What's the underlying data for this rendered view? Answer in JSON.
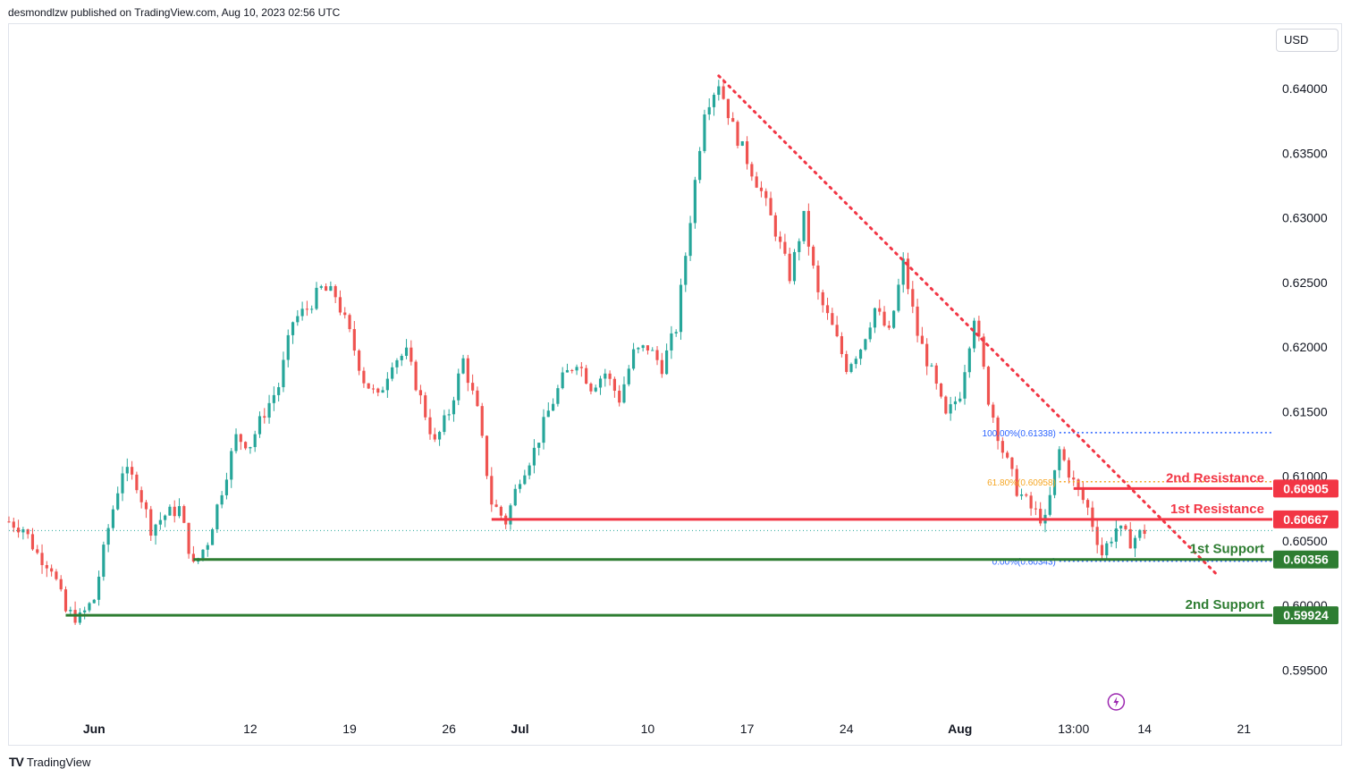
{
  "header": {
    "published": "desmondlzw published on TradingView.com, Aug 10, 2023 02:56 UTC"
  },
  "currency": "USD",
  "footer": {
    "brand": "TradingView",
    "brand_mark": "TV"
  },
  "colors": {
    "up": "#26a69a",
    "down": "#ef5350",
    "resistance": "#f23645",
    "support": "#2e7d32",
    "fib": "#2962ff",
    "fib_gold": "#f5a623",
    "trend": "#f23645"
  },
  "chart_data": {
    "type": "candlestick",
    "symbol_axis": {
      "ticks": [
        0.64,
        0.635,
        0.63,
        0.625,
        0.62,
        0.615,
        0.61,
        0.605,
        0.6,
        0.595
      ],
      "tick_labels": [
        "0.64000",
        "0.63500",
        "0.63000",
        "0.62500",
        "0.62000",
        "0.61500",
        "0.61000",
        "0.60500",
        "0.60000",
        "0.59500"
      ],
      "ylim": [
        0.5915,
        0.645
      ]
    },
    "x_axis": {
      "range": [
        "2023-05-26",
        "2023-08-23"
      ],
      "ticks": [
        {
          "date": "2023-06-01",
          "label": "Jun",
          "bold": true
        },
        {
          "date": "2023-06-12",
          "label": "12",
          "bold": false
        },
        {
          "date": "2023-06-19",
          "label": "19",
          "bold": false
        },
        {
          "date": "2023-06-26",
          "label": "26",
          "bold": false
        },
        {
          "date": "2023-07-01",
          "label": "Jul",
          "bold": true
        },
        {
          "date": "2023-07-10",
          "label": "10",
          "bold": false
        },
        {
          "date": "2023-07-17",
          "label": "17",
          "bold": false
        },
        {
          "date": "2023-07-24",
          "label": "24",
          "bold": false
        },
        {
          "date": "2023-08-01",
          "label": "Aug",
          "bold": true
        },
        {
          "date": "2023-08-09",
          "label": "13:00",
          "bold": false
        },
        {
          "date": "2023-08-14",
          "label": "14",
          "bold": false
        },
        {
          "date": "2023-08-21",
          "label": "21",
          "bold": false
        }
      ]
    },
    "close_path": [
      [
        "2023-05-26",
        0.6065
      ],
      [
        "2023-05-27",
        0.606
      ],
      [
        "2023-05-28",
        0.604
      ],
      [
        "2023-05-29",
        0.603
      ],
      [
        "2023-05-30",
        0.5995
      ],
      [
        "2023-05-31",
        0.599
      ],
      [
        "2023-06-01",
        0.6005
      ],
      [
        "2023-06-02",
        0.606
      ],
      [
        "2023-06-03",
        0.6105
      ],
      [
        "2023-06-04",
        0.6095
      ],
      [
        "2023-06-05",
        0.606
      ],
      [
        "2023-06-06",
        0.607
      ],
      [
        "2023-06-07",
        0.6075
      ],
      [
        "2023-06-08",
        0.603
      ],
      [
        "2023-06-09",
        0.605
      ],
      [
        "2023-06-10",
        0.609
      ],
      [
        "2023-06-11",
        0.613
      ],
      [
        "2023-06-12",
        0.6125
      ],
      [
        "2023-06-13",
        0.615
      ],
      [
        "2023-06-14",
        0.617
      ],
      [
        "2023-06-15",
        0.622
      ],
      [
        "2023-06-16",
        0.623
      ],
      [
        "2023-06-17",
        0.6245
      ],
      [
        "2023-06-18",
        0.624
      ],
      [
        "2023-06-19",
        0.621
      ],
      [
        "2023-06-20",
        0.6175
      ],
      [
        "2023-06-21",
        0.616
      ],
      [
        "2023-06-22",
        0.619
      ],
      [
        "2023-06-23",
        0.6195
      ],
      [
        "2023-06-24",
        0.616
      ],
      [
        "2023-06-25",
        0.6125
      ],
      [
        "2023-06-26",
        0.615
      ],
      [
        "2023-06-27",
        0.619
      ],
      [
        "2023-06-28",
        0.615
      ],
      [
        "2023-06-29",
        0.608
      ],
      [
        "2023-06-30",
        0.6065
      ],
      [
        "2023-07-01",
        0.61
      ],
      [
        "2023-07-02",
        0.612
      ],
      [
        "2023-07-03",
        0.615
      ],
      [
        "2023-07-04",
        0.6175
      ],
      [
        "2023-07-05",
        0.619
      ],
      [
        "2023-07-06",
        0.617
      ],
      [
        "2023-07-07",
        0.618
      ],
      [
        "2023-07-08",
        0.616
      ],
      [
        "2023-07-09",
        0.6195
      ],
      [
        "2023-07-10",
        0.62
      ],
      [
        "2023-07-11",
        0.6185
      ],
      [
        "2023-07-12",
        0.6215
      ],
      [
        "2023-07-13",
        0.63
      ],
      [
        "2023-07-14",
        0.6385
      ],
      [
        "2023-07-15",
        0.6405
      ],
      [
        "2023-07-16",
        0.637
      ],
      [
        "2023-07-17",
        0.6345
      ],
      [
        "2023-07-18",
        0.632
      ],
      [
        "2023-07-19",
        0.629
      ],
      [
        "2023-07-20",
        0.6255
      ],
      [
        "2023-07-21",
        0.63
      ],
      [
        "2023-07-22",
        0.624
      ],
      [
        "2023-07-23",
        0.6215
      ],
      [
        "2023-07-24",
        0.6185
      ],
      [
        "2023-07-25",
        0.62
      ],
      [
        "2023-07-26",
        0.623
      ],
      [
        "2023-07-27",
        0.621
      ],
      [
        "2023-07-28",
        0.6265
      ],
      [
        "2023-07-29",
        0.621
      ],
      [
        "2023-07-30",
        0.618
      ],
      [
        "2023-07-31",
        0.6145
      ],
      [
        "2023-08-01",
        0.6165
      ],
      [
        "2023-08-02",
        0.6225
      ],
      [
        "2023-08-03",
        0.616
      ],
      [
        "2023-08-04",
        0.612
      ],
      [
        "2023-08-05",
        0.609
      ],
      [
        "2023-08-06",
        0.6075
      ],
      [
        "2023-08-07",
        0.6065
      ],
      [
        "2023-08-08",
        0.612
      ],
      [
        "2023-08-09",
        0.6095
      ],
      [
        "2023-08-10",
        0.6075
      ],
      [
        "2023-08-11",
        0.604
      ],
      [
        "2023-08-12",
        0.606
      ],
      [
        "2023-08-13",
        0.605
      ],
      [
        "2023-08-14",
        0.6058
      ]
    ],
    "levels": [
      {
        "name": "2nd Resistance",
        "price": 0.60905,
        "label": "0.60905",
        "kind": "resistance",
        "from": "2023-08-09"
      },
      {
        "name": "1st Resistance",
        "price": 0.60667,
        "label": "0.60667",
        "kind": "resistance",
        "from": "2023-06-29"
      },
      {
        "name": "1st Support",
        "price": 0.60356,
        "label": "0.60356",
        "kind": "support",
        "from": "2023-06-08"
      },
      {
        "name": "2nd Support",
        "price": 0.59924,
        "label": "0.59924",
        "kind": "support",
        "from": "2023-05-30"
      }
    ],
    "current_price": 0.6058,
    "fibonacci": [
      {
        "label": "100.00%(0.61338)",
        "price": 0.61338
      },
      {
        "label": "61.80%(0.60958)",
        "price": 0.60958
      },
      {
        "label": "0.00%(0.60343)",
        "price": 0.60343
      }
    ],
    "fib_anchor": {
      "start": "2023-08-08",
      "end": "2023-08-23"
    },
    "trendline": {
      "start": [
        "2023-07-15",
        0.641
      ],
      "end": [
        "2023-08-19",
        0.6025
      ]
    },
    "grid": false
  }
}
